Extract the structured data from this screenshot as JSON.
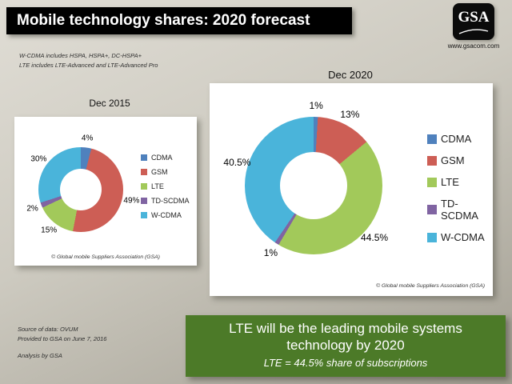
{
  "slide": {
    "title": "Mobile technology shares: 2020 forecast",
    "logo": {
      "text": "GSA",
      "url_label": "www.gsacom.com"
    },
    "notes": [
      "W-CDMA includes HSPA, HSPA+, DC-HSPA+",
      "LTE includes LTE-Advanced and LTE-Advanced Pro"
    ],
    "source": [
      "Source of data: OVUM",
      "Provided to GSA on June 7, 2016",
      "Analysis by GSA"
    ],
    "callout": {
      "line1": "LTE will be the leading mobile systems technology by 2020",
      "line2": "LTE = 44.5% share of subscriptions",
      "bg": "#4c7a28"
    }
  },
  "chart_data": [
    {
      "type": "pie",
      "subtype": "donut",
      "title": "Dec 2015",
      "categories": [
        "CDMA",
        "GSM",
        "LTE",
        "TD-SCDMA",
        "W-CDMA"
      ],
      "values": [
        4,
        49,
        15,
        2,
        30
      ],
      "labels": [
        "4%",
        "49%",
        "15%",
        "2%",
        "30%"
      ],
      "colors": [
        "#4f81bd",
        "#cd5e55",
        "#a2c95a",
        "#8064a2",
        "#4ab4da"
      ],
      "legend_position": "right",
      "footnote": "© Global mobile Suppliers Association (GSA)"
    },
    {
      "type": "pie",
      "subtype": "donut",
      "title": "Dec 2020",
      "categories": [
        "CDMA",
        "GSM",
        "LTE",
        "TD-SCDMA",
        "W-CDMA"
      ],
      "values": [
        1,
        13,
        44.5,
        1,
        40.5
      ],
      "labels": [
        "1%",
        "13%",
        "44.5%",
        "1%",
        "40.5%"
      ],
      "colors": [
        "#4f81bd",
        "#cd5e55",
        "#a2c95a",
        "#8064a2",
        "#4ab4da"
      ],
      "legend_position": "right",
      "footnote": "© Global mobile Suppliers Association (GSA)"
    }
  ]
}
